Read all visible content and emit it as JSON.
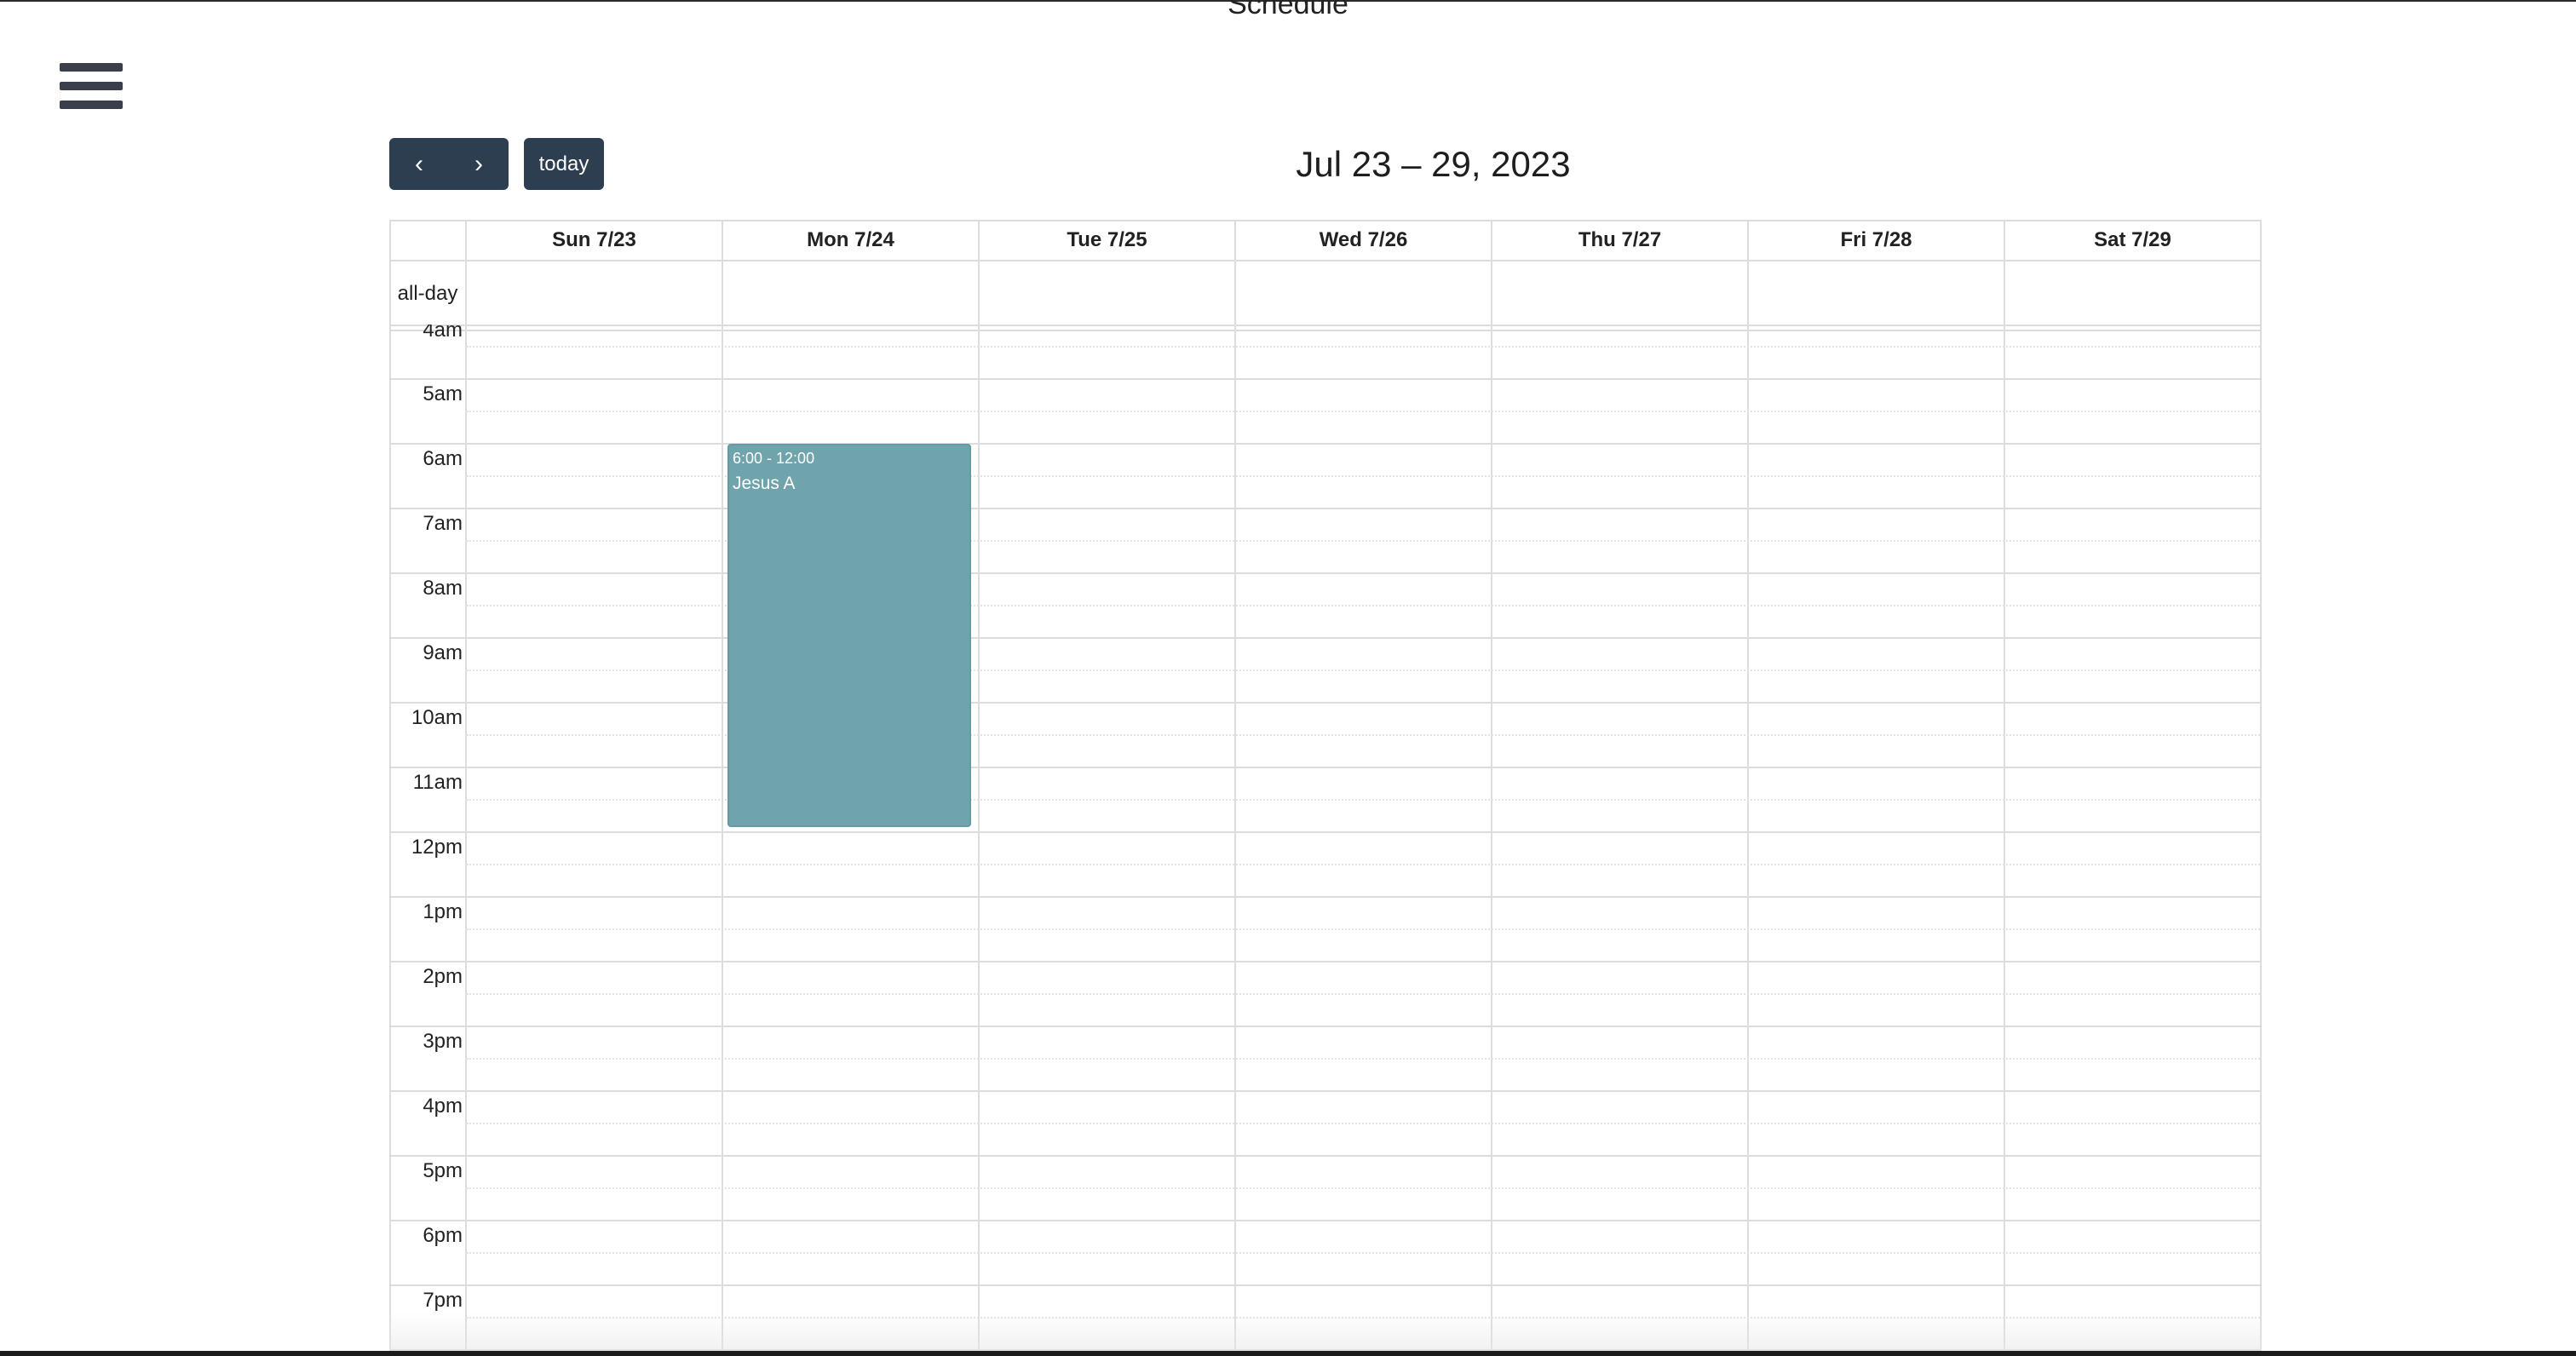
{
  "page": {
    "title": "Schedule"
  },
  "toolbar": {
    "prev_label": "‹",
    "next_label": "›",
    "today_label": "today",
    "range_title": "Jul 23 – 29, 2023"
  },
  "calendar": {
    "allday_label": "all-day",
    "days": [
      {
        "label": "Sun 7/23"
      },
      {
        "label": "Mon 7/24"
      },
      {
        "label": "Tue 7/25"
      },
      {
        "label": "Wed 7/26"
      },
      {
        "label": "Thu 7/27"
      },
      {
        "label": "Fri 7/28"
      },
      {
        "label": "Sat 7/29"
      }
    ],
    "times": [
      "4am",
      "5am",
      "6am",
      "7am",
      "8am",
      "9am",
      "10am",
      "11am",
      "12pm",
      "1pm",
      "2pm",
      "3pm",
      "4pm",
      "5pm",
      "6pm",
      "7pm"
    ],
    "events": [
      {
        "day": "Mon 7/24",
        "time": "6:00 - 12:00",
        "title": "Jesus A",
        "color": "#6fa4ad"
      }
    ]
  },
  "colors": {
    "button": "#2c3e50",
    "event": "#6fa4ad",
    "grid": "#dddddd"
  },
  "icons": {
    "menu": "hamburger-menu-icon",
    "prev": "chevron-left-icon",
    "next": "chevron-right-icon"
  }
}
